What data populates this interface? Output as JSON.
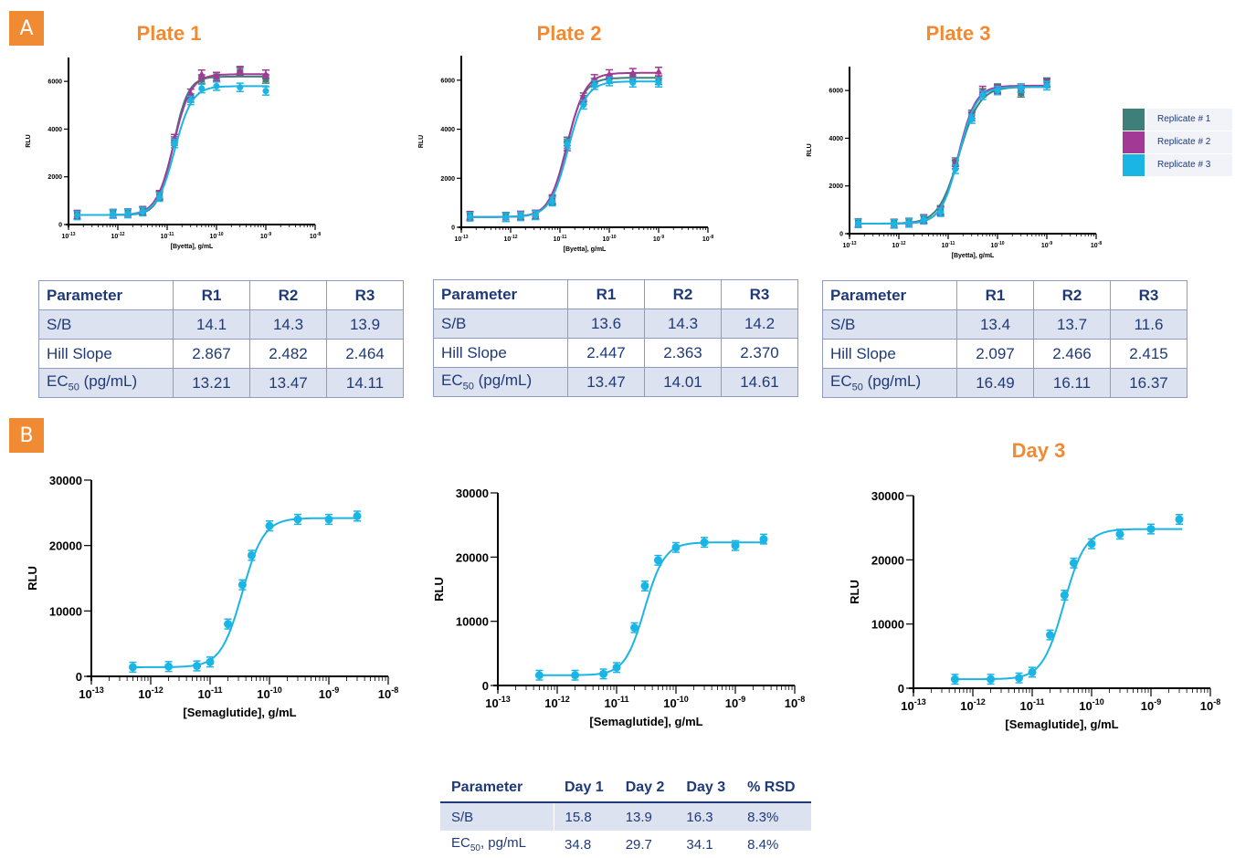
{
  "panels": {
    "a": "A",
    "b": "B"
  },
  "plate_titles": [
    "Plate 1",
    "Plate 2",
    "Plate 3"
  ],
  "day_title": "Day 3",
  "legend": [
    {
      "label": "Replicate # 1",
      "color": "#3f7f7a"
    },
    {
      "label": "Replicate # 2",
      "color": "#a23a95"
    },
    {
      "label": "Replicate # 3",
      "color": "#1bb5e5"
    }
  ],
  "plate_tables": [
    {
      "header": [
        "Parameter",
        "R1",
        "R2",
        "R3"
      ],
      "rows": [
        {
          "param": "S/B",
          "sub": "",
          "rest": "",
          "vals": [
            "14.1",
            "14.3",
            "13.9"
          ]
        },
        {
          "param": "Hill Slope",
          "sub": "",
          "rest": "",
          "vals": [
            "2.867",
            "2.482",
            "2.464"
          ]
        },
        {
          "param": "EC",
          "sub": "50",
          "rest": " (pg/mL)",
          "vals": [
            "13.21",
            "13.47",
            "14.11"
          ]
        }
      ]
    },
    {
      "header": [
        "Parameter",
        "R1",
        "R2",
        "R3"
      ],
      "rows": [
        {
          "param": "S/B",
          "sub": "",
          "rest": "",
          "vals": [
            "13.6",
            "14.3",
            "14.2"
          ]
        },
        {
          "param": "Hill Slope",
          "sub": "",
          "rest": "",
          "vals": [
            "2.447",
            "2.363",
            "2.370"
          ]
        },
        {
          "param": "EC",
          "sub": "50",
          "rest": " (pg/mL)",
          "vals": [
            "13.47",
            "14.01",
            "14.61"
          ]
        }
      ]
    },
    {
      "header": [
        "Parameter",
        "R1",
        "R2",
        "R3"
      ],
      "rows": [
        {
          "param": "S/B",
          "sub": "",
          "rest": "",
          "vals": [
            "13.4",
            "13.7",
            "11.6"
          ]
        },
        {
          "param": "Hill Slope",
          "sub": "",
          "rest": "",
          "vals": [
            "2.097",
            "2.466",
            "2.415"
          ]
        },
        {
          "param": "EC",
          "sub": "50",
          "rest": " (pg/mL)",
          "vals": [
            "16.49",
            "16.11",
            "16.37"
          ]
        }
      ]
    }
  ],
  "day_table": {
    "header": [
      "Parameter",
      "Day 1",
      "Day 2",
      "Day 3",
      "% RSD"
    ],
    "rows": [
      {
        "param": "S/B",
        "sub": "",
        "rest": "",
        "vals": [
          "15.8",
          "13.9",
          "16.3",
          "8.3%"
        ]
      },
      {
        "param": "EC",
        "sub": "50",
        "rest": ", pg/mL",
        "vals": [
          "34.8",
          "29.7",
          "34.1",
          "8.4%"
        ]
      }
    ]
  },
  "chart_data": [
    {
      "type": "scatter",
      "xlabel": "[Byetta], g/mL",
      "ylabel": "RLU",
      "xscale": "log",
      "xlim": [
        1e-13,
        1e-08
      ],
      "ylim": [
        0,
        7000
      ],
      "yticks": [
        0,
        2000,
        4000,
        6000
      ],
      "series": [
        {
          "name": "Replicate # 1",
          "color": "#3f7f7a",
          "fit": {
            "bottom": 400,
            "top": 6200,
            "ec50": 1.32e-11,
            "hill": 2.867
          },
          "x": [
            1.5e-13,
            8e-13,
            1.6e-12,
            3.2e-12,
            7e-12,
            1.4e-11,
            3e-11,
            5e-11,
            1e-10,
            3e-10,
            1e-09
          ],
          "y": [
            400,
            460,
            480,
            560,
            1200,
            3500,
            5300,
            6100,
            6200,
            6400,
            6100
          ]
        },
        {
          "name": "Replicate # 2",
          "color": "#a23a95",
          "fit": {
            "bottom": 400,
            "top": 6300,
            "ec50": 1.347e-11,
            "hill": 2.482
          },
          "x": [
            1.5e-13,
            8e-13,
            1.6e-12,
            3.2e-12,
            7e-12,
            1.4e-11,
            3e-11,
            5e-11,
            1e-10,
            3e-10,
            1e-09
          ],
          "y": [
            420,
            450,
            470,
            580,
            1250,
            3600,
            5500,
            6300,
            6200,
            6450,
            6300
          ]
        },
        {
          "name": "Replicate # 3",
          "color": "#1bb5e5",
          "fit": {
            "bottom": 400,
            "top": 5800,
            "ec50": 1.411e-11,
            "hill": 2.464
          },
          "x": [
            1.5e-13,
            8e-13,
            1.6e-12,
            3.2e-12,
            7e-12,
            1.4e-11,
            3e-11,
            5e-11,
            1e-10,
            3e-10,
            1e-09
          ],
          "y": [
            380,
            440,
            460,
            540,
            1150,
            3400,
            5200,
            5700,
            5800,
            5750,
            5600
          ]
        }
      ]
    },
    {
      "type": "scatter",
      "xlabel": "[Byetta], g/mL",
      "ylabel": "RLU",
      "xscale": "log",
      "xlim": [
        1e-13,
        1e-08
      ],
      "ylim": [
        0,
        7000
      ],
      "yticks": [
        0,
        2000,
        4000,
        6000
      ],
      "series": [
        {
          "name": "Replicate # 1",
          "color": "#3f7f7a",
          "fit": {
            "bottom": 420,
            "top": 6100,
            "ec50": 1.347e-11,
            "hill": 2.447
          },
          "x": [
            1.5e-13,
            8e-13,
            1.6e-12,
            3.2e-12,
            7e-12,
            1.4e-11,
            3e-11,
            5e-11,
            1e-10,
            3e-10,
            1e-09
          ],
          "y": [
            450,
            430,
            460,
            500,
            1100,
            3500,
            5200,
            5900,
            6050,
            6100,
            6000
          ]
        },
        {
          "name": "Replicate # 2",
          "color": "#a23a95",
          "fit": {
            "bottom": 420,
            "top": 6300,
            "ec50": 1.401e-11,
            "hill": 2.363
          },
          "x": [
            1.5e-13,
            8e-13,
            1.6e-12,
            3.2e-12,
            7e-12,
            1.4e-11,
            3e-11,
            5e-11,
            1e-10,
            3e-10,
            1e-09
          ],
          "y": [
            470,
            420,
            480,
            520,
            1150,
            3300,
            5300,
            6050,
            6250,
            6300,
            6350
          ]
        },
        {
          "name": "Replicate # 3",
          "color": "#1bb5e5",
          "fit": {
            "bottom": 420,
            "top": 5950,
            "ec50": 1.461e-11,
            "hill": 2.37
          },
          "x": [
            1.5e-13,
            8e-13,
            1.6e-12,
            3.2e-12,
            7e-12,
            1.4e-11,
            3e-11,
            5e-11,
            1e-10,
            3e-10,
            1e-09
          ],
          "y": [
            430,
            410,
            450,
            490,
            1050,
            3400,
            5000,
            5800,
            5950,
            5900,
            5900
          ]
        }
      ]
    },
    {
      "type": "scatter",
      "xlabel": "[Byetta], g/mL",
      "ylabel": "RLU",
      "xscale": "log",
      "xlim": [
        1e-13,
        1e-08
      ],
      "ylim": [
        0,
        7000
      ],
      "yticks": [
        0,
        2000,
        4000,
        6000
      ],
      "series": [
        {
          "name": "Replicate # 1",
          "color": "#3f7f7a",
          "fit": {
            "bottom": 420,
            "top": 6150,
            "ec50": 1.649e-11,
            "hill": 2.097
          },
          "x": [
            1.5e-13,
            8e-13,
            1.6e-12,
            3.2e-12,
            7e-12,
            1.4e-11,
            3e-11,
            5e-11,
            1e-10,
            3e-10,
            1e-09
          ],
          "y": [
            450,
            430,
            470,
            600,
            1000,
            3000,
            5000,
            5900,
            6100,
            5900,
            6350
          ]
        },
        {
          "name": "Replicate # 2",
          "color": "#a23a95",
          "fit": {
            "bottom": 420,
            "top": 6200,
            "ec50": 1.611e-11,
            "hill": 2.466
          },
          "x": [
            1.5e-13,
            8e-13,
            1.6e-12,
            3.2e-12,
            7e-12,
            1.4e-11,
            3e-11,
            5e-11,
            1e-10,
            3e-10,
            1e-09
          ],
          "y": [
            440,
            420,
            460,
            620,
            950,
            2900,
            4900,
            6000,
            6050,
            6100,
            6300
          ]
        },
        {
          "name": "Replicate # 3",
          "color": "#1bb5e5",
          "fit": {
            "bottom": 420,
            "top": 6150,
            "ec50": 1.637e-11,
            "hill": 2.415
          },
          "x": [
            1.5e-13,
            8e-13,
            1.6e-12,
            3.2e-12,
            7e-12,
            1.4e-11,
            3e-11,
            5e-11,
            1e-10,
            3e-10,
            1e-09
          ],
          "y": [
            430,
            410,
            450,
            580,
            900,
            2700,
            4800,
            5800,
            6000,
            6100,
            6200
          ]
        }
      ]
    },
    {
      "type": "scatter",
      "xlabel": "[Semaglutide], g/mL",
      "ylabel": "RLU",
      "xscale": "log",
      "xlim": [
        1e-13,
        1e-08
      ],
      "ylim": [
        0,
        30000
      ],
      "yticks": [
        0,
        10000,
        20000,
        30000
      ],
      "series": [
        {
          "color": "#1bb5e5",
          "fit": {
            "bottom": 1400,
            "top": 24200,
            "ec50": 3.48e-11,
            "hill": 2.4
          },
          "x": [
            5e-13,
            2e-12,
            6e-12,
            1e-11,
            2e-11,
            3.5e-11,
            5e-11,
            1e-10,
            3e-10,
            1e-09,
            3e-09
          ],
          "y": [
            1400,
            1500,
            1600,
            2200,
            8000,
            14000,
            18500,
            23000,
            24000,
            24000,
            24500
          ]
        }
      ]
    },
    {
      "type": "scatter",
      "xlabel": "[Semaglutide], g/mL",
      "ylabel": "RLU",
      "xscale": "log",
      "xlim": [
        1e-13,
        1e-08
      ],
      "ylim": [
        0,
        30000
      ],
      "yticks": [
        0,
        10000,
        20000,
        30000
      ],
      "series": [
        {
          "color": "#1bb5e5",
          "fit": {
            "bottom": 1600,
            "top": 22300,
            "ec50": 2.97e-11,
            "hill": 2.6
          },
          "x": [
            5e-13,
            2e-12,
            6e-12,
            1e-11,
            2e-11,
            3e-11,
            5e-11,
            1e-10,
            3e-10,
            1e-09,
            3e-09
          ],
          "y": [
            1600,
            1600,
            1800,
            2800,
            9000,
            15500,
            19500,
            21500,
            22300,
            21800,
            22800
          ]
        }
      ]
    },
    {
      "type": "scatter",
      "xlabel": "[Semaglutide], g/mL",
      "ylabel": "RLU",
      "xscale": "log",
      "xlim": [
        1e-13,
        1e-08
      ],
      "ylim": [
        0,
        30000
      ],
      "yticks": [
        0,
        10000,
        20000,
        30000
      ],
      "series": [
        {
          "color": "#1bb5e5",
          "fit": {
            "bottom": 1400,
            "top": 24800,
            "ec50": 3.41e-11,
            "hill": 2.4
          },
          "x": [
            5e-13,
            2e-12,
            6e-12,
            1e-11,
            2e-11,
            3.5e-11,
            5e-11,
            1e-10,
            3e-10,
            1e-09,
            3e-09
          ],
          "y": [
            1400,
            1400,
            1600,
            2500,
            8300,
            14500,
            19500,
            22500,
            24000,
            24800,
            26300
          ]
        }
      ]
    }
  ]
}
